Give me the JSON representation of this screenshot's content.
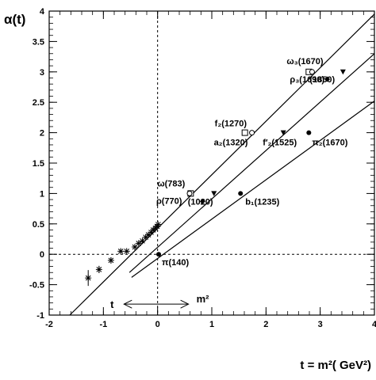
{
  "chart_data": {
    "type": "scatter",
    "title": "",
    "xlabel": "t = m²( GeV²)",
    "ylabel": "α(t)",
    "xlim": [
      -2,
      4
    ],
    "ylim": [
      -1,
      4
    ],
    "xticks": [
      -2,
      -1,
      0,
      1,
      2,
      3,
      4
    ],
    "xtick_labels": [
      "-2",
      "-1",
      "0",
      "1",
      "2",
      "3",
      "4"
    ],
    "yticks": [
      -1,
      -0.5,
      0,
      0.5,
      1,
      1.5,
      2,
      2.5,
      3,
      3.5,
      4
    ],
    "ytick_labels": [
      "-1",
      "-0.5",
      "0",
      "0.5",
      "1",
      "1.5",
      "2",
      "2.5",
      "3",
      "3.5",
      "4"
    ],
    "grid": false,
    "lines": [
      {
        "x": [
          -1.62,
          4.0
        ],
        "y": [
          -1.0,
          3.95
        ]
      },
      {
        "x": [
          -0.52,
          4.0
        ],
        "y": [
          -0.3,
          3.3
        ]
      },
      {
        "x": [
          -0.48,
          4.0
        ],
        "y": [
          -0.38,
          2.52
        ]
      }
    ],
    "reference_lines": [
      {
        "orientation": "horizontal",
        "value": 0,
        "style": "dashed"
      },
      {
        "orientation": "vertical",
        "value": 0,
        "style": "dashed"
      }
    ],
    "star_points": [
      {
        "x": -1.28,
        "y": -0.39,
        "yerr": 0.13
      },
      {
        "x": -1.08,
        "y": -0.25,
        "yerr": 0.06
      },
      {
        "x": -0.86,
        "y": -0.1,
        "yerr": 0.05
      },
      {
        "x": -0.68,
        "y": 0.05,
        "yerr": 0.03
      },
      {
        "x": -0.57,
        "y": 0.05,
        "yerr": 0
      },
      {
        "x": -0.42,
        "y": 0.12,
        "yerr": 0
      },
      {
        "x": -0.35,
        "y": 0.18,
        "yerr": 0
      },
      {
        "x": -0.28,
        "y": 0.22,
        "yerr": 0
      },
      {
        "x": -0.22,
        "y": 0.28,
        "yerr": 0
      },
      {
        "x": -0.17,
        "y": 0.32,
        "yerr": 0
      },
      {
        "x": -0.12,
        "y": 0.36,
        "yerr": 0
      },
      {
        "x": -0.08,
        "y": 0.4,
        "yerr": 0
      },
      {
        "x": -0.04,
        "y": 0.43,
        "yerr": 0
      },
      {
        "x": -0.01,
        "y": 0.46,
        "yerr": 0
      },
      {
        "x": 0.01,
        "y": 0.49,
        "yerr": 0
      }
    ],
    "particles": [
      {
        "label": "π(140)",
        "x": 0.02,
        "y": 0.0,
        "marker": "circle"
      },
      {
        "label": "ω(783)",
        "x": 0.61,
        "y": 1.0,
        "marker": "square"
      },
      {
        "label": "ρ(770)",
        "x": 0.59,
        "y": 1.0,
        "marker": "circle-open"
      },
      {
        "label": "",
        "x": 0.83,
        "y": 0.87,
        "marker": "diamond"
      },
      {
        "label": "(1020)",
        "x": 1.04,
        "y": 1.0,
        "marker": "triangle"
      },
      {
        "label": "b₁(1235)",
        "x": 1.53,
        "y": 1.0,
        "marker": "circle"
      },
      {
        "label": "f₂(1270)",
        "x": 1.61,
        "y": 2.0,
        "marker": "square"
      },
      {
        "label": "a₂(1320)",
        "x": 1.74,
        "y": 2.0,
        "marker": "circle-open"
      },
      {
        "label": "f′₂(1525)",
        "x": 2.32,
        "y": 2.0,
        "marker": "triangle"
      },
      {
        "label": "π₂(1670)",
        "x": 2.79,
        "y": 2.0,
        "marker": "circle"
      },
      {
        "label": "ω₃(1670)",
        "x": 2.79,
        "y": 3.0,
        "marker": "square"
      },
      {
        "label": "ρ₃(1690)",
        "x": 2.85,
        "y": 3.0,
        "marker": "circle-open"
      },
      {
        "label": "",
        "x": 3.13,
        "y": 2.88,
        "marker": "diamond"
      },
      {
        "label": "(1850)",
        "x": 3.42,
        "y": 3.0,
        "marker": "triangle"
      }
    ],
    "arrow_annotation": {
      "left_label": "t",
      "right_label": "m²",
      "x_from": -0.62,
      "x_to": 0.57,
      "y": -0.82
    }
  }
}
